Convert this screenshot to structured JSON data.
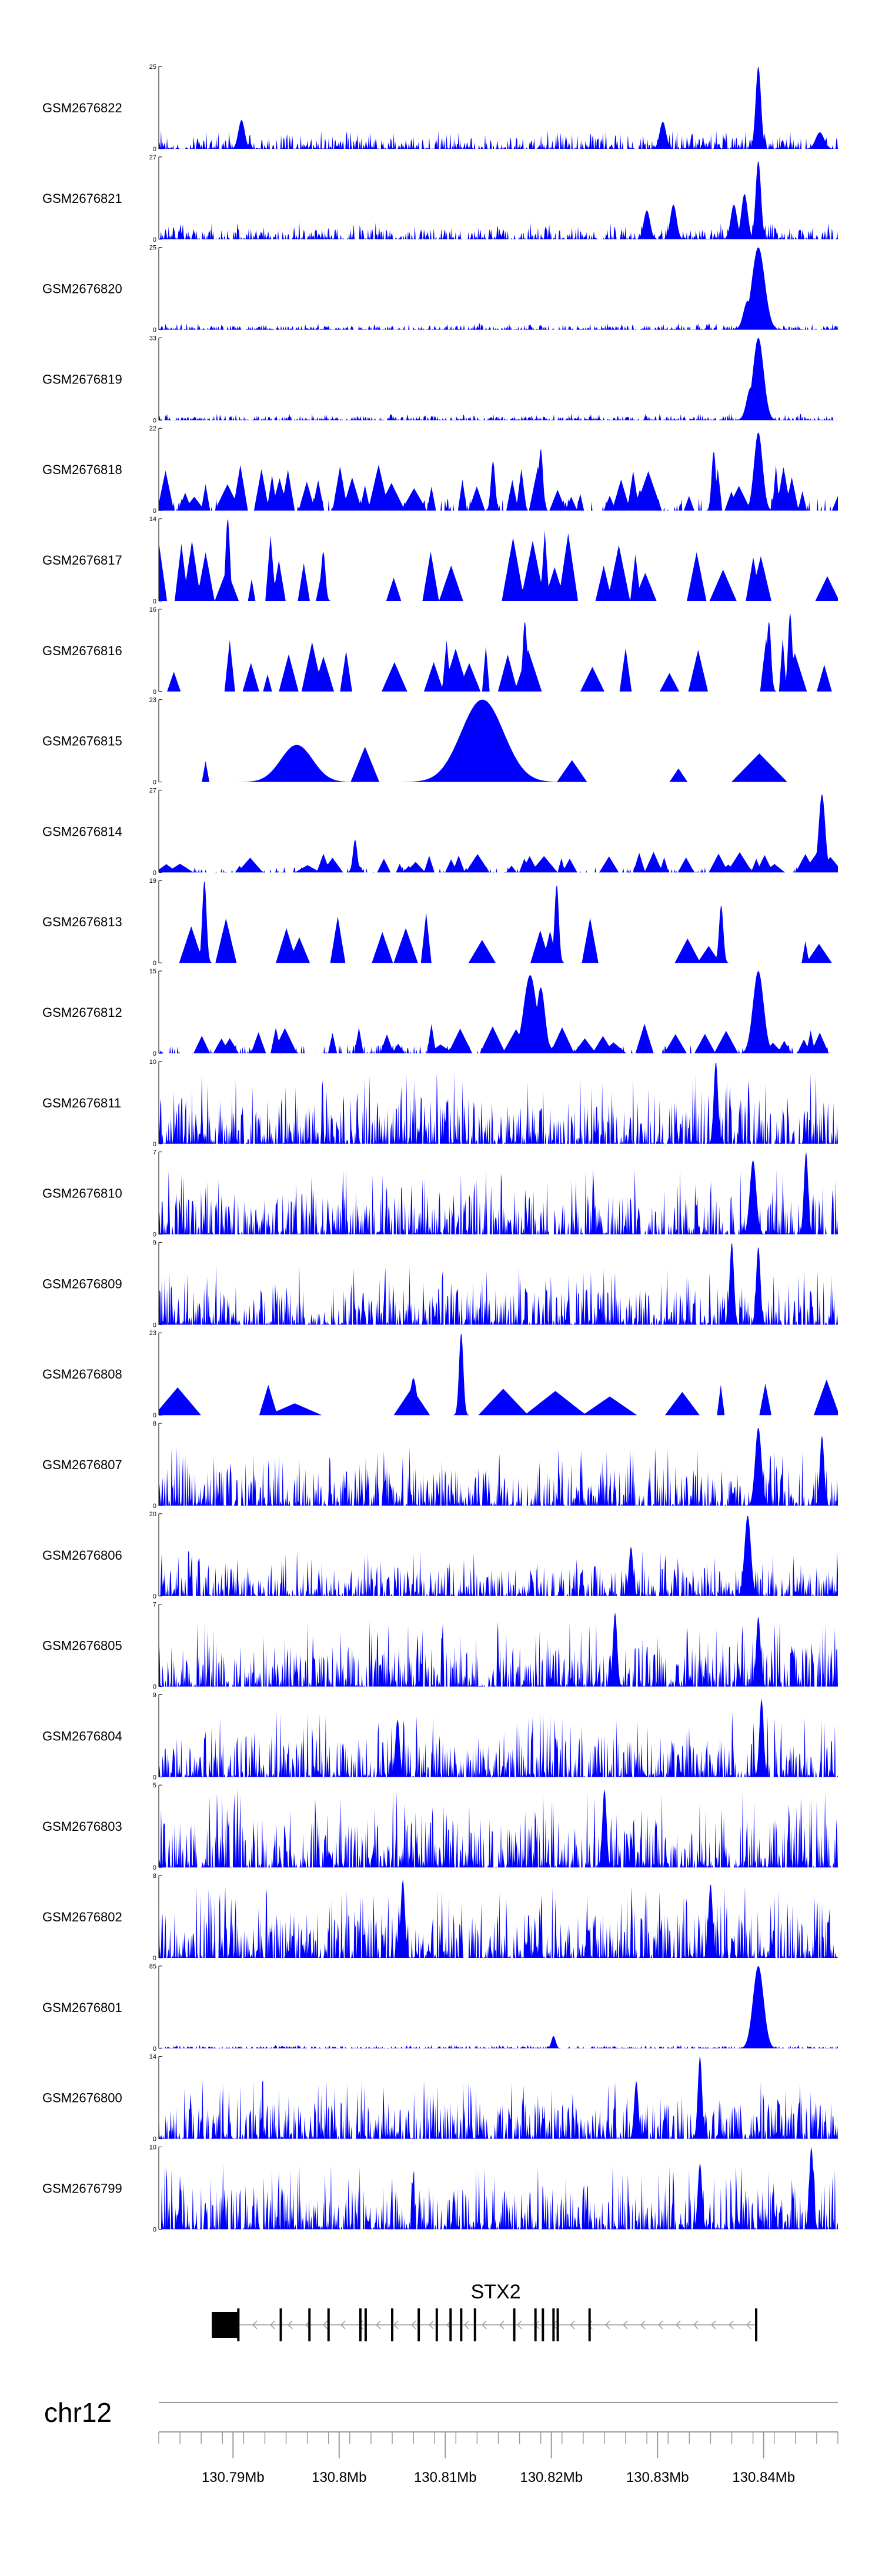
{
  "chart_data": {
    "type": "area",
    "fill_color": "#0000ff",
    "genome_region": {
      "chromosome": "chr12",
      "xlim": [
        130.783,
        130.847
      ],
      "ticks_mb": [
        130.79,
        130.8,
        130.81,
        130.82,
        130.83,
        130.84
      ],
      "tick_labels": [
        "130.79Mb",
        "130.8Mb",
        "130.81Mb",
        "130.82Mb",
        "130.83Mb",
        "130.84Mb"
      ]
    },
    "tracks": [
      {
        "name": "GSM2676822",
        "ymax": 25,
        "ymax_label": "25",
        "ymin_label": "0",
        "style": "dense",
        "seed": 11,
        "base": 0.14,
        "peaks": [
          [
            130.8395,
            1.0,
            0.00025
          ],
          [
            130.7908,
            0.35,
            0.0003
          ],
          [
            130.8305,
            0.33,
            0.0003
          ],
          [
            130.8453,
            0.2,
            0.0004
          ]
        ]
      },
      {
        "name": "GSM2676821",
        "ymax": 27,
        "ymax_label": "27",
        "ymin_label": "0",
        "style": "dense",
        "seed": 12,
        "base": 0.13,
        "peaks": [
          [
            130.8395,
            0.95,
            0.00025
          ],
          [
            130.8382,
            0.55,
            0.0003
          ],
          [
            130.8372,
            0.42,
            0.0003
          ],
          [
            130.829,
            0.35,
            0.0003
          ],
          [
            130.8315,
            0.42,
            0.0003
          ]
        ]
      },
      {
        "name": "GSM2676820",
        "ymax": 25,
        "ymax_label": "25",
        "ymin_label": "0",
        "style": "dense",
        "seed": 13,
        "base": 0.05,
        "peaks": [
          [
            130.8395,
            1.0,
            0.0006
          ],
          [
            130.8385,
            0.35,
            0.0004
          ]
        ]
      },
      {
        "name": "GSM2676819",
        "ymax": 33,
        "ymax_label": "33",
        "ymin_label": "0",
        "style": "dense",
        "seed": 14,
        "base": 0.05,
        "peaks": [
          [
            130.8395,
            1.0,
            0.0005
          ],
          [
            130.8388,
            0.4,
            0.0004
          ]
        ]
      },
      {
        "name": "GSM2676818",
        "ymax": 22,
        "ymax_label": "22",
        "ymin_label": "0",
        "style": "spiky",
        "seed": 15,
        "base": 0.45,
        "peaks": [
          [
            130.8395,
            0.95,
            0.0004
          ],
          [
            130.819,
            0.75,
            0.0002
          ],
          [
            130.8145,
            0.6,
            0.0002
          ],
          [
            130.8353,
            0.72,
            0.0002
          ]
        ]
      },
      {
        "name": "GSM2676817",
        "ymax": 14,
        "ymax_label": "14",
        "ymin_label": "0",
        "style": "sparse",
        "seed": 16,
        "base": 0.7,
        "peaks": [
          [
            130.7895,
            1.0,
            0.0002
          ],
          [
            130.7985,
            0.6,
            0.0002
          ]
        ]
      },
      {
        "name": "GSM2676816",
        "ymax": 16,
        "ymax_label": "16",
        "ymin_label": "0",
        "style": "sparse",
        "seed": 17,
        "base": 0.55,
        "peaks": [
          [
            130.8175,
            0.85,
            0.0002
          ],
          [
            130.8405,
            0.85,
            0.0002
          ],
          [
            130.8425,
            0.95,
            0.0002
          ]
        ]
      },
      {
        "name": "GSM2676815",
        "ymax": 23,
        "ymax_label": "23",
        "ymin_label": "0",
        "style": "very-sparse",
        "seed": 18,
        "base": 0.35,
        "peaks": [
          [
            130.8135,
            1.0,
            0.002
          ],
          [
            130.796,
            0.45,
            0.0015
          ]
        ]
      },
      {
        "name": "GSM2676814",
        "ymax": 27,
        "ymax_label": "27",
        "ymin_label": "0",
        "style": "spiky",
        "seed": 19,
        "base": 0.2,
        "peaks": [
          [
            130.8455,
            0.95,
            0.0003
          ],
          [
            130.8015,
            0.4,
            0.0002
          ]
        ]
      },
      {
        "name": "GSM2676813",
        "ymax": 19,
        "ymax_label": "19",
        "ymin_label": "0",
        "style": "sparse",
        "seed": 20,
        "base": 0.5,
        "peaks": [
          [
            130.7873,
            1.0,
            0.0002
          ],
          [
            130.8205,
            0.95,
            0.0002
          ],
          [
            130.836,
            0.7,
            0.0002
          ]
        ]
      },
      {
        "name": "GSM2676812",
        "ymax": 15,
        "ymax_label": "15",
        "ymin_label": "0",
        "style": "spiky",
        "seed": 21,
        "base": 0.3,
        "peaks": [
          [
            130.8395,
            1.0,
            0.0005
          ],
          [
            130.818,
            0.95,
            0.0006
          ],
          [
            130.819,
            0.8,
            0.0004
          ]
        ]
      },
      {
        "name": "GSM2676811",
        "ymax": 10,
        "ymax_label": "10",
        "ymin_label": "0",
        "style": "dense",
        "seed": 22,
        "base": 0.55,
        "peaks": [
          [
            130.8355,
            1.0,
            0.0002
          ]
        ]
      },
      {
        "name": "GSM2676810",
        "ymax": 7,
        "ymax_label": "7",
        "ymin_label": "0",
        "style": "dense",
        "seed": 23,
        "base": 0.5,
        "peaks": [
          [
            130.844,
            1.0,
            0.0002
          ],
          [
            130.839,
            0.9,
            0.0003
          ]
        ]
      },
      {
        "name": "GSM2676809",
        "ymax": 9,
        "ymax_label": "9",
        "ymin_label": "0",
        "style": "dense",
        "seed": 24,
        "base": 0.45,
        "peaks": [
          [
            130.837,
            1.0,
            0.0002
          ],
          [
            130.8395,
            0.95,
            0.0002
          ]
        ]
      },
      {
        "name": "GSM2676808",
        "ymax": 23,
        "ymax_label": "23",
        "ymin_label": "0",
        "style": "very-sparse",
        "seed": 25,
        "base": 0.35,
        "peaks": [
          [
            130.8115,
            1.0,
            0.0002
          ],
          [
            130.807,
            0.45,
            0.0003
          ]
        ]
      },
      {
        "name": "GSM2676807",
        "ymax": 8,
        "ymax_label": "8",
        "ymin_label": "0",
        "style": "dense",
        "seed": 26,
        "base": 0.45,
        "peaks": [
          [
            130.8395,
            0.95,
            0.0003
          ],
          [
            130.8455,
            0.85,
            0.0002
          ]
        ]
      },
      {
        "name": "GSM2676806",
        "ymax": 20,
        "ymax_label": "20",
        "ymin_label": "0",
        "style": "dense",
        "seed": 27,
        "base": 0.35,
        "peaks": [
          [
            130.8385,
            0.98,
            0.0003
          ],
          [
            130.8275,
            0.6,
            0.0002
          ]
        ]
      },
      {
        "name": "GSM2676805",
        "ymax": 7,
        "ymax_label": "7",
        "ymin_label": "0",
        "style": "dense",
        "seed": 28,
        "base": 0.5,
        "peaks": [
          [
            130.826,
            0.9,
            0.0002
          ],
          [
            130.8395,
            0.85,
            0.0002
          ]
        ]
      },
      {
        "name": "GSM2676804",
        "ymax": 9,
        "ymax_label": "9",
        "ymin_label": "0",
        "style": "dense",
        "seed": 29,
        "base": 0.5,
        "peaks": [
          [
            130.8398,
            0.95,
            0.0002
          ],
          [
            130.8055,
            0.7,
            0.0002
          ]
        ]
      },
      {
        "name": "GSM2676803",
        "ymax": 5,
        "ymax_label": "5",
        "ymin_label": "0",
        "style": "dense",
        "seed": 30,
        "base": 0.6,
        "peaks": [
          [
            130.825,
            0.95,
            0.0002
          ]
        ]
      },
      {
        "name": "GSM2676802",
        "ymax": 8,
        "ymax_label": "8",
        "ymin_label": "0",
        "style": "dense",
        "seed": 31,
        "base": 0.55,
        "peaks": [
          [
            130.806,
            0.95,
            0.0002
          ],
          [
            130.835,
            0.9,
            0.0002
          ]
        ]
      },
      {
        "name": "GSM2676801",
        "ymax": 85,
        "ymax_label": "85",
        "ymin_label": "0",
        "style": "dense",
        "seed": 32,
        "base": 0.025,
        "peaks": [
          [
            130.8395,
            1.0,
            0.0005
          ],
          [
            130.8202,
            0.15,
            0.0002
          ]
        ]
      },
      {
        "name": "GSM2676800",
        "ymax": 14,
        "ymax_label": "14",
        "ymin_label": "0",
        "style": "dense",
        "seed": 33,
        "base": 0.45,
        "peaks": [
          [
            130.834,
            1.0,
            0.0002
          ],
          [
            130.828,
            0.7,
            0.0002
          ]
        ]
      },
      {
        "name": "GSM2676799",
        "ymax": 10,
        "ymax_label": "10",
        "ymin_label": "0",
        "style": "dense",
        "seed": 34,
        "base": 0.5,
        "peaks": [
          [
            130.8445,
            1.0,
            0.0002
          ],
          [
            130.834,
            0.8,
            0.0002
          ]
        ]
      }
    ],
    "gene": {
      "name": "STX2",
      "strand": "-",
      "start_mb": 130.788,
      "end_mb": 130.8393,
      "utr_block": [
        130.788,
        130.7905
      ],
      "exons_mb": [
        130.7905,
        130.7945,
        130.7972,
        130.799,
        130.802,
        130.8025,
        130.805,
        130.8075,
        130.8092,
        130.8105,
        130.8115,
        130.8128,
        130.8165,
        130.8185,
        130.8192,
        130.8202,
        130.8206,
        130.8236,
        130.8393
      ]
    }
  }
}
